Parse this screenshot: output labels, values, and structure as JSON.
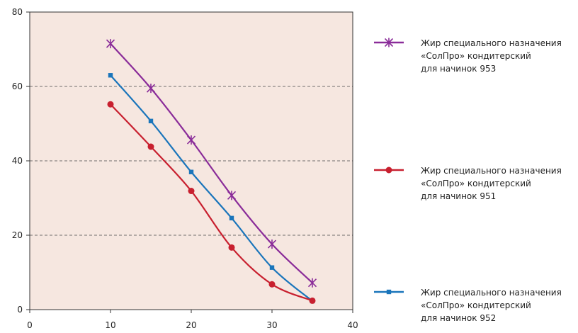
{
  "chart_data": {
    "type": "line",
    "x": [
      10,
      15,
      20,
      25,
      30,
      35
    ],
    "xlim": [
      0,
      40
    ],
    "ylim": [
      0,
      80
    ],
    "xticks": [
      0,
      10,
      20,
      30,
      40
    ],
    "yticks": [
      0,
      20,
      40,
      60,
      80
    ],
    "grid": "horizontal dashed",
    "plot_background": "#f6e7e0",
    "legend_position": "right",
    "series": [
      {
        "key": "s953",
        "name_lines": [
          "Жир специального назначения",
          "«СолПро» кондитерский",
          "для начинок 953"
        ],
        "values": [
          71.5,
          59.5,
          45.6,
          30.7,
          17.6,
          7.2
        ],
        "color": "#8a2c99",
        "marker": "star"
      },
      {
        "key": "s951",
        "name_lines": [
          "Жир специального назначения",
          "«СолПро» кондитерский",
          "для начинок 951"
        ],
        "values": [
          55.2,
          43.8,
          31.9,
          16.7,
          6.8,
          2.4
        ],
        "color": "#c8202f",
        "marker": "circle"
      },
      {
        "key": "s952",
        "name_lines": [
          "Жир специального назначения",
          "«СолПро» кондитерский",
          "для начинок 952"
        ],
        "values": [
          63.0,
          50.7,
          37.0,
          24.6,
          11.3,
          2.3
        ],
        "color": "#1a75bb",
        "marker": "square"
      }
    ]
  }
}
